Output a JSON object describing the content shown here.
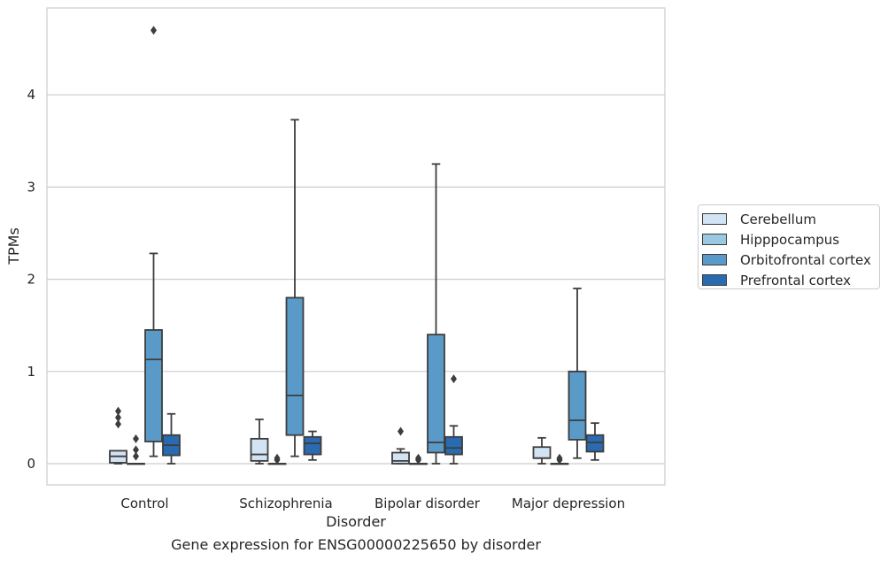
{
  "chart_data": {
    "type": "box",
    "xlabel": "Disorder",
    "ylabel": "TPMs",
    "categories": [
      "Control",
      "Schizophrenia",
      "Bipolar disorder",
      "Major depression"
    ],
    "ylim": [
      -0.23,
      4.95
    ],
    "yticks": [
      0,
      1,
      2,
      3,
      4
    ],
    "grid": "horizontal",
    "legend_position": "right",
    "series": [
      {
        "name": "Cerebellum",
        "color": "#d2e3f3",
        "boxes": [
          {
            "whislo": 0.0,
            "q1": 0.01,
            "med": 0.08,
            "q3": 0.14,
            "whishi": 0.14,
            "fliers": [
              0.43,
              0.5,
              0.57
            ]
          },
          {
            "whislo": 0.0,
            "q1": 0.03,
            "med": 0.1,
            "q3": 0.27,
            "whishi": 0.48,
            "fliers": []
          },
          {
            "whislo": 0.0,
            "q1": 0.0,
            "med": 0.03,
            "q3": 0.12,
            "whishi": 0.16,
            "fliers": [
              0.35
            ]
          },
          {
            "whislo": 0.0,
            "q1": 0.06,
            "med": 0.06,
            "q3": 0.18,
            "whishi": 0.28,
            "fliers": []
          }
        ]
      },
      {
        "name": "Hipppocampus",
        "color": "#9ac8e0",
        "boxes": [
          {
            "whislo": 0.0,
            "q1": 0.0,
            "med": 0.0,
            "q3": 0.0,
            "whishi": 0.0,
            "fliers": [
              0.08,
              0.15,
              0.27
            ]
          },
          {
            "whislo": 0.0,
            "q1": 0.0,
            "med": 0.0,
            "q3": 0.0,
            "whishi": 0.0,
            "fliers": [
              0.04,
              0.06
            ]
          },
          {
            "whislo": 0.0,
            "q1": 0.0,
            "med": 0.0,
            "q3": 0.0,
            "whishi": 0.0,
            "fliers": [
              0.04,
              0.06
            ]
          },
          {
            "whislo": 0.0,
            "q1": 0.0,
            "med": 0.0,
            "q3": 0.0,
            "whishi": 0.0,
            "fliers": [
              0.04,
              0.06
            ]
          }
        ]
      },
      {
        "name": "Orbitofrontal cortex",
        "color": "#5a9ac8",
        "boxes": [
          {
            "whislo": 0.08,
            "q1": 0.24,
            "med": 1.13,
            "q3": 1.45,
            "whishi": 2.28,
            "fliers": [
              4.7
            ]
          },
          {
            "whislo": 0.08,
            "q1": 0.31,
            "med": 0.74,
            "q3": 1.8,
            "whishi": 3.73,
            "fliers": []
          },
          {
            "whislo": 0.0,
            "q1": 0.12,
            "med": 0.23,
            "q3": 1.4,
            "whishi": 3.25,
            "fliers": []
          },
          {
            "whislo": 0.06,
            "q1": 0.26,
            "med": 0.47,
            "q3": 1.0,
            "whishi": 1.9,
            "fliers": []
          }
        ]
      },
      {
        "name": "Prefrontal cortex",
        "color": "#2a6ab0",
        "boxes": [
          {
            "whislo": 0.0,
            "q1": 0.09,
            "med": 0.2,
            "q3": 0.31,
            "whishi": 0.54,
            "fliers": []
          },
          {
            "whislo": 0.04,
            "q1": 0.1,
            "med": 0.22,
            "q3": 0.29,
            "whishi": 0.35,
            "fliers": []
          },
          {
            "whislo": 0.0,
            "q1": 0.1,
            "med": 0.17,
            "q3": 0.29,
            "whishi": 0.41,
            "fliers": [
              0.92
            ]
          },
          {
            "whislo": 0.04,
            "q1": 0.13,
            "med": 0.23,
            "q3": 0.31,
            "whishi": 0.44,
            "fliers": []
          }
        ]
      }
    ]
  },
  "caption": "Gene expression for ENSG00000225650 by disorder"
}
